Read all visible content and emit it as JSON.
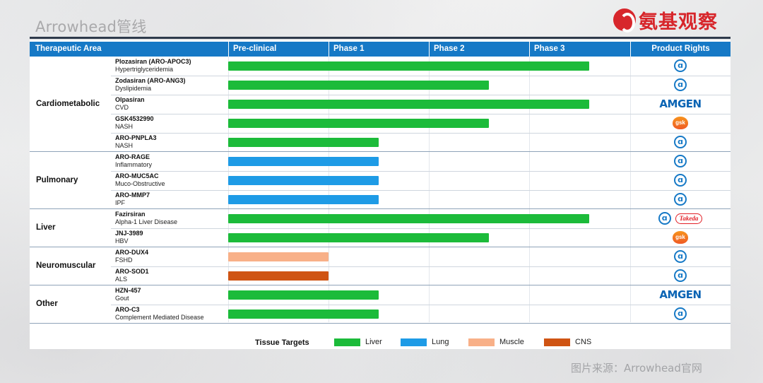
{
  "page": {
    "title": "Arrowhead管线",
    "brand": "氨基观察",
    "source": "图片来源：Arrowhead官网"
  },
  "colors": {
    "header": "#1679c6",
    "liver": "#1cbb3a",
    "lung": "#1e9be6",
    "muscle": "#f8b088",
    "cns": "#cf5413"
  },
  "chart_data": {
    "type": "table",
    "headers": {
      "area": "Therapeutic Area",
      "preclinical": "Pre-clinical",
      "phase1": "Phase 1",
      "phase2": "Phase 2",
      "phase3": "Phase 3",
      "rights": "Product Rights"
    },
    "stage_scale": [
      0,
      4
    ],
    "areas": [
      {
        "name": "Cardiometabolic",
        "drugs": [
          {
            "name": "Plozasiran (ARO-APOC3)",
            "indication": "Hypertriglyceridemia",
            "progress": 3.6,
            "tissue": "liver",
            "rights": [
              "arrowhead-logo"
            ]
          },
          {
            "name": "Zodasiran (ARO-ANG3)",
            "indication": "Dyslipidemia",
            "progress": 2.6,
            "tissue": "liver",
            "rights": [
              "arrowhead-logo"
            ]
          },
          {
            "name": "Olpasiran",
            "indication": "CVD",
            "progress": 3.6,
            "tissue": "liver",
            "rights": [
              "AMGEN"
            ]
          },
          {
            "name": "GSK4532990",
            "indication": "NASH",
            "progress": 2.6,
            "tissue": "liver",
            "rights": [
              "gsk"
            ]
          },
          {
            "name": "ARO-PNPLA3",
            "indication": "NASH",
            "progress": 1.5,
            "tissue": "liver",
            "rights": [
              "arrowhead-logo"
            ]
          }
        ]
      },
      {
        "name": "Pulmonary",
        "drugs": [
          {
            "name": "ARO-RAGE",
            "indication": "Inflammatory",
            "progress": 1.5,
            "tissue": "lung",
            "rights": [
              "arrowhead-logo"
            ]
          },
          {
            "name": "ARO-MUC5AC",
            "indication": "Muco-Obstructive",
            "progress": 1.5,
            "tissue": "lung",
            "rights": [
              "arrowhead-logo"
            ]
          },
          {
            "name": "ARO-MMP7",
            "indication": "IPF",
            "progress": 1.5,
            "tissue": "lung",
            "rights": [
              "arrowhead-logo"
            ]
          }
        ]
      },
      {
        "name": "Liver",
        "drugs": [
          {
            "name": "Fazirsiran",
            "indication": "Alpha-1 Liver Disease",
            "progress": 3.6,
            "tissue": "liver",
            "rights": [
              "arrowhead-logo",
              "Takeda"
            ]
          },
          {
            "name": "JNJ-3989",
            "indication": "HBV",
            "progress": 2.6,
            "tissue": "liver",
            "rights": [
              "gsk"
            ]
          }
        ]
      },
      {
        "name": "Neuromuscular",
        "drugs": [
          {
            "name": "ARO-DUX4",
            "indication": "FSHD",
            "progress": 1.0,
            "tissue": "muscle",
            "rights": [
              "arrowhead-logo"
            ]
          },
          {
            "name": "ARO-SOD1",
            "indication": "ALS",
            "progress": 1.0,
            "tissue": "cns",
            "rights": [
              "arrowhead-logo"
            ]
          }
        ]
      },
      {
        "name": "Other",
        "drugs": [
          {
            "name": "HZN-457",
            "indication": "Gout",
            "progress": 1.5,
            "tissue": "liver",
            "rights": [
              "AMGEN"
            ]
          },
          {
            "name": "ARO-C3",
            "indication": "Complement Mediated Disease",
            "progress": 1.5,
            "tissue": "liver",
            "rights": [
              "arrowhead-logo"
            ]
          }
        ]
      }
    ],
    "legend": {
      "title": "Tissue Targets",
      "items": [
        {
          "key": "liver",
          "label": "Liver"
        },
        {
          "key": "lung",
          "label": "Lung"
        },
        {
          "key": "muscle",
          "label": "Muscle"
        },
        {
          "key": "cns",
          "label": "CNS"
        }
      ]
    }
  }
}
